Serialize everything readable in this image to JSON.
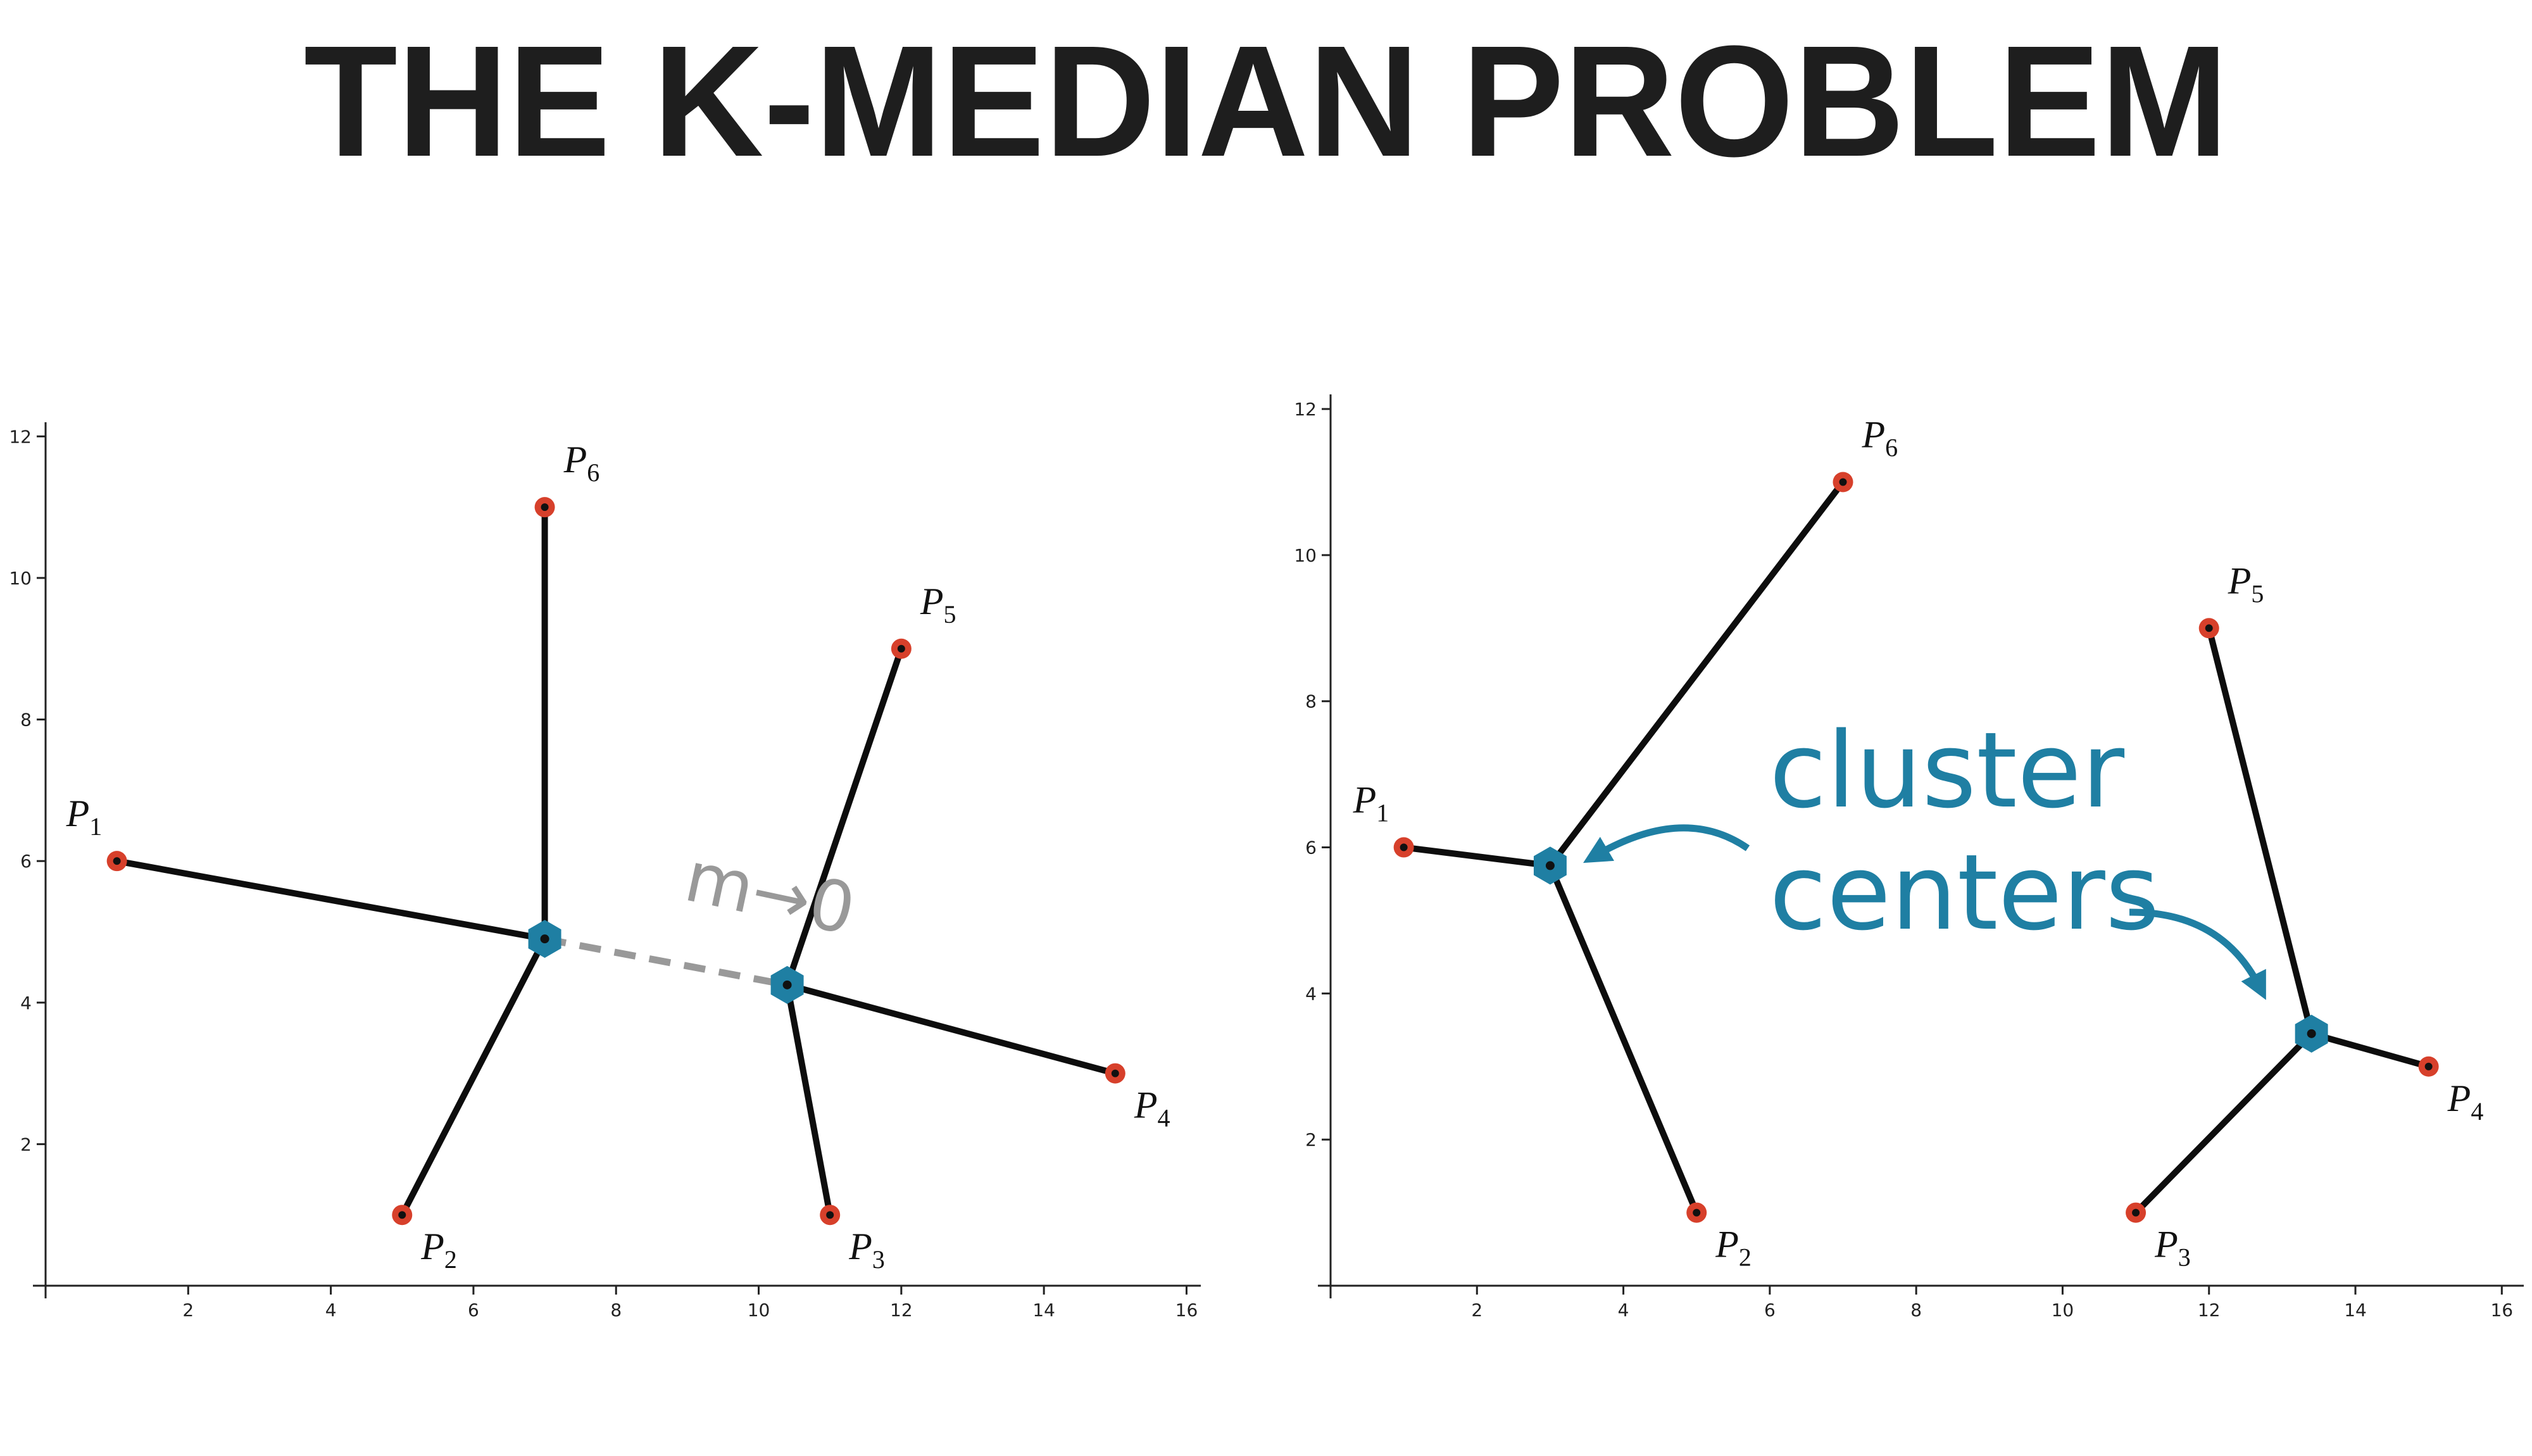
{
  "title": "THE K-MEDIAN PROBLEM",
  "chart_data": [
    {
      "type": "scatter",
      "x": [
        1,
        5,
        11,
        15,
        12,
        7
      ],
      "y": [
        6,
        1,
        1,
        3,
        9,
        11
      ],
      "point_labels": [
        {
          "base": "P",
          "sub": "1"
        },
        {
          "base": "P",
          "sub": "2"
        },
        {
          "base": "P",
          "sub": "3"
        },
        {
          "base": "P",
          "sub": "4"
        },
        {
          "base": "P",
          "sub": "5"
        },
        {
          "base": "P",
          "sub": "6"
        }
      ],
      "centers_x": [
        7,
        10.4
      ],
      "centers_y": [
        4.9,
        4.25
      ],
      "assignment": [
        0,
        0,
        1,
        1,
        1,
        0
      ],
      "centers_linked": true,
      "annotation": "m→0",
      "xlim": [
        0,
        16.2
      ],
      "ylim": [
        0,
        12.2
      ],
      "xticks": [
        2,
        4,
        6,
        8,
        10,
        12,
        14,
        16
      ],
      "yticks": [
        2,
        4,
        6,
        8,
        10,
        12
      ],
      "point_color": "#d7402b",
      "center_color": "#1f7fa3"
    },
    {
      "type": "scatter",
      "x": [
        1,
        5,
        11,
        15,
        12,
        7
      ],
      "y": [
        6,
        1,
        1,
        3,
        9,
        11
      ],
      "point_labels": [
        {
          "base": "P",
          "sub": "1"
        },
        {
          "base": "P",
          "sub": "2"
        },
        {
          "base": "P",
          "sub": "3"
        },
        {
          "base": "P",
          "sub": "4"
        },
        {
          "base": "P",
          "sub": "5"
        },
        {
          "base": "P",
          "sub": "6"
        }
      ],
      "centers_x": [
        3,
        13.4
      ],
      "centers_y": [
        5.75,
        3.45
      ],
      "assignment": [
        0,
        0,
        1,
        1,
        1,
        0
      ],
      "centers_linked": false,
      "annotation_lines": [
        "cluster",
        "centers"
      ],
      "annotation_color": "#1f7fa3",
      "xlim": [
        0,
        16.3
      ],
      "ylim": [
        0,
        12.2
      ],
      "xticks": [
        2,
        4,
        6,
        8,
        10,
        12,
        14,
        16
      ],
      "yticks": [
        2,
        4,
        6,
        8,
        10,
        12
      ],
      "point_color": "#d7402b",
      "center_color": "#1f7fa3"
    }
  ]
}
